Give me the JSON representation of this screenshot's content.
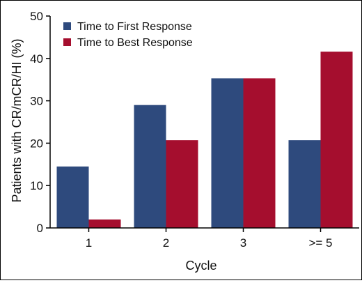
{
  "chart_data": {
    "type": "bar",
    "title": "",
    "xlabel": "Cycle",
    "ylabel": "Patients with CR/mCR/HI (%)",
    "categories": [
      "1",
      "2",
      "3",
      ">= 5"
    ],
    "ylim": [
      0,
      50
    ],
    "yticks": [
      "0",
      "10",
      "20",
      "30",
      "40",
      "50"
    ],
    "legend_position": "top-left",
    "grid": false,
    "series": [
      {
        "name": "Time to First Response",
        "color": "#2e4a7d",
        "values": [
          14.5,
          29,
          35.3,
          20.7
        ]
      },
      {
        "name": "Time to Best Response",
        "color": "#a50e2e",
        "values": [
          2,
          20.7,
          35.3,
          41.6
        ]
      }
    ]
  }
}
